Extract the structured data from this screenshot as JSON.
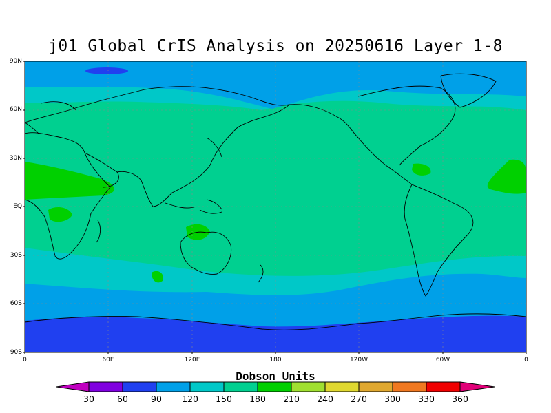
{
  "title": "j01 Global CrIS Analysis on 20250616 Layer 1-8",
  "lat_labels": [
    "90N",
    "60N",
    "30N",
    "EQ",
    "30S",
    "60S",
    "90S"
  ],
  "lon_labels": [
    "0",
    "60E",
    "120E",
    "180",
    "120W",
    "60W",
    "0"
  ],
  "colorbar": {
    "title": "Dobson Units",
    "labels": [
      "30",
      "60",
      "90",
      "120",
      "150",
      "180",
      "210",
      "240",
      "270",
      "300",
      "330",
      "360"
    ],
    "colors": [
      "#c000c0",
      "#8000e0",
      "#2040f0",
      "#00a0e8",
      "#00c8c8",
      "#00d090",
      "#00d000",
      "#a0e030",
      "#e0d830",
      "#e0a830",
      "#f07820",
      "#f00000",
      "#e00078"
    ]
  },
  "field_colors": {
    "band_60_90": "#2040f0",
    "band_90_120": "#00a0e8",
    "band_120_150": "#00c8c8",
    "band_150_180": "#00d090",
    "band_180_210": "#00d000"
  }
}
